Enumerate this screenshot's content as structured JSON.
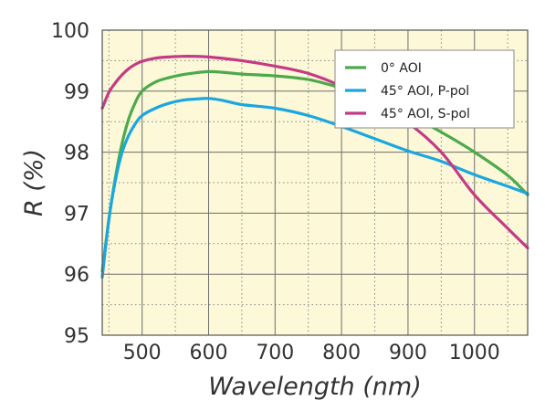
{
  "chart_data": {
    "type": "line",
    "xlabel": "Wavelength (nm)",
    "ylabel": "R (%)",
    "xlim": [
      440,
      1080
    ],
    "ylim": [
      95,
      100
    ],
    "xticks": [
      500,
      600,
      700,
      800,
      900,
      1000
    ],
    "xtick_labels": [
      "500",
      "600",
      "700",
      "800",
      "900",
      "1000"
    ],
    "yticks": [
      95,
      96,
      97,
      98,
      99,
      100
    ],
    "ytick_labels": [
      "95",
      "96",
      "97",
      "98",
      "99",
      "100"
    ],
    "grid": "dotted major and minor",
    "legend_position": "top-right",
    "background_color": "#fcf8d8",
    "series": [
      {
        "name": "0° AOI",
        "color": "#4caa4c",
        "points": [
          [
            440,
            96.05
          ],
          [
            450,
            96.9
          ],
          [
            460,
            97.6
          ],
          [
            470,
            98.15
          ],
          [
            480,
            98.55
          ],
          [
            490,
            98.82
          ],
          [
            500,
            99.0
          ],
          [
            520,
            99.15
          ],
          [
            540,
            99.22
          ],
          [
            560,
            99.27
          ],
          [
            580,
            99.3
          ],
          [
            600,
            99.32
          ],
          [
            620,
            99.31
          ],
          [
            650,
            99.28
          ],
          [
            700,
            99.25
          ],
          [
            750,
            99.19
          ],
          [
            800,
            99.05
          ],
          [
            850,
            98.88
          ],
          [
            900,
            98.62
          ],
          [
            950,
            98.33
          ],
          [
            1000,
            98.0
          ],
          [
            1050,
            97.62
          ],
          [
            1080,
            97.3
          ]
        ]
      },
      {
        "name": "45° AOI, P-pol",
        "color": "#1aa7e0",
        "points": [
          [
            440,
            95.95
          ],
          [
            450,
            96.9
          ],
          [
            460,
            97.55
          ],
          [
            470,
            98.0
          ],
          [
            480,
            98.28
          ],
          [
            490,
            98.47
          ],
          [
            500,
            98.6
          ],
          [
            520,
            98.72
          ],
          [
            540,
            98.8
          ],
          [
            560,
            98.85
          ],
          [
            580,
            98.87
          ],
          [
            600,
            98.88
          ],
          [
            620,
            98.85
          ],
          [
            650,
            98.78
          ],
          [
            700,
            98.72
          ],
          [
            750,
            98.6
          ],
          [
            800,
            98.42
          ],
          [
            850,
            98.22
          ],
          [
            900,
            98.02
          ],
          [
            950,
            97.85
          ],
          [
            1000,
            97.63
          ],
          [
            1050,
            97.44
          ],
          [
            1080,
            97.32
          ]
        ]
      },
      {
        "name": "45° AOI, S-pol",
        "color": "#c43b85",
        "points": [
          [
            440,
            98.72
          ],
          [
            450,
            98.98
          ],
          [
            460,
            99.14
          ],
          [
            470,
            99.27
          ],
          [
            480,
            99.37
          ],
          [
            490,
            99.44
          ],
          [
            500,
            99.49
          ],
          [
            520,
            99.54
          ],
          [
            540,
            99.56
          ],
          [
            560,
            99.57
          ],
          [
            580,
            99.57
          ],
          [
            600,
            99.56
          ],
          [
            650,
            99.5
          ],
          [
            700,
            99.41
          ],
          [
            750,
            99.29
          ],
          [
            800,
            99.08
          ],
          [
            850,
            98.8
          ],
          [
            900,
            98.48
          ],
          [
            950,
            98.0
          ],
          [
            1000,
            97.3
          ],
          [
            1050,
            96.75
          ],
          [
            1080,
            96.43
          ]
        ]
      }
    ]
  }
}
